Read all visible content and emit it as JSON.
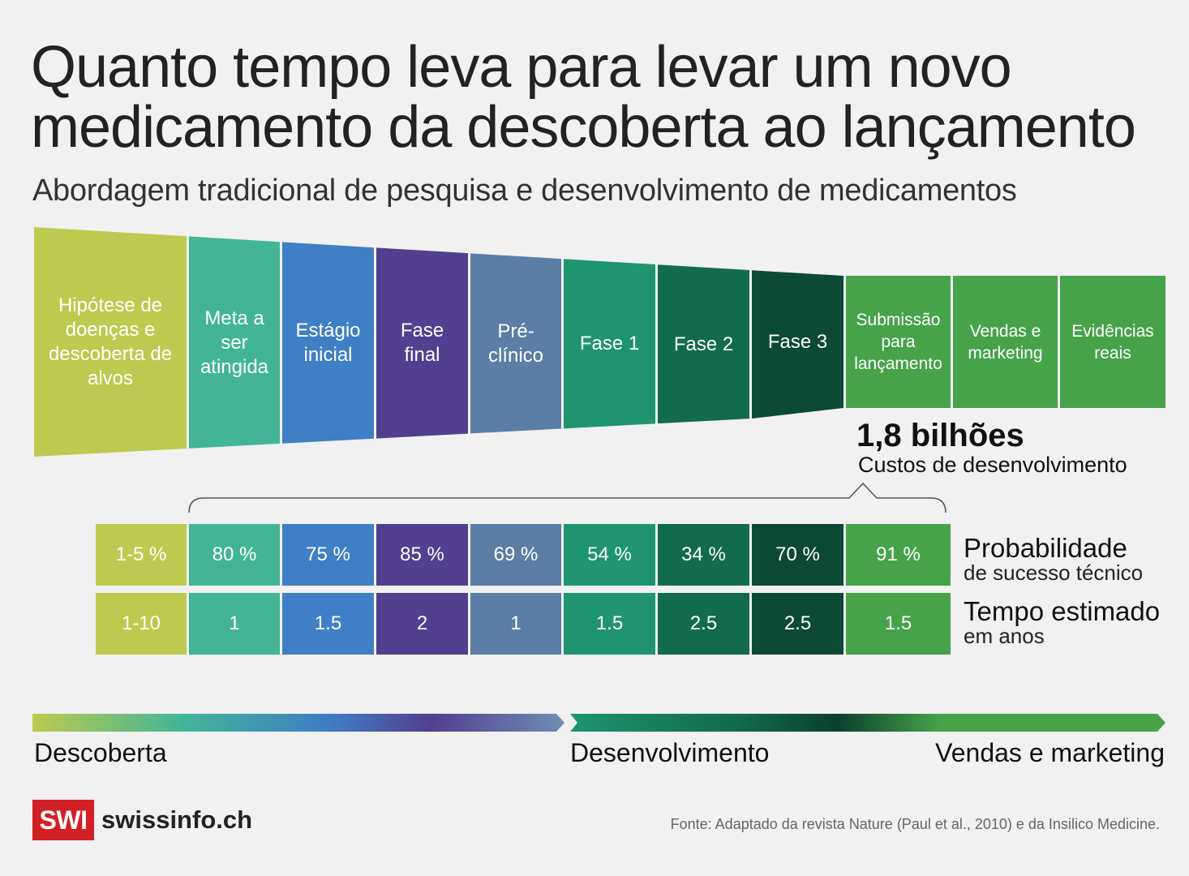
{
  "title": "Quanto tempo leva para levar um novo medicamento da descoberta ao lançamento",
  "subtitle": "Abordagem tradicional de pesquisa e desenvolvimento de medicamentos",
  "stages": [
    {
      "label": "Hipótese de doenças e descoberta de alvos",
      "color": "#bdca4f",
      "probability": "1-5 %",
      "years": "1-10"
    },
    {
      "label": "Meta a ser atingida",
      "color": "#42b596",
      "probability": "80 %",
      "years": "1"
    },
    {
      "label": "Estágio inicial",
      "color": "#3f7fc5",
      "probability": "75 %",
      "years": "1.5"
    },
    {
      "label": "Fase final",
      "color": "#523f8f",
      "probability": "85 %",
      "years": "2"
    },
    {
      "label": "Pré-clínico",
      "color": "#5a7ea6",
      "probability": "69 %",
      "years": "1"
    },
    {
      "label": "Fase 1",
      "color": "#1e9470",
      "probability": "54 %",
      "years": "1.5"
    },
    {
      "label": "Fase 2",
      "color": "#116b4c",
      "probability": "34 %",
      "years": "2.5"
    },
    {
      "label": "Fase 3",
      "color": "#0c4a36",
      "probability": "70 %",
      "years": "2.5"
    },
    {
      "label": "Submissão para lançamento",
      "color": "#46a34a",
      "probability": "91 %",
      "years": "1.5"
    },
    {
      "label": "Vendas e marketing",
      "color": "#46a34a"
    },
    {
      "label": "Evidências reais",
      "color": "#46a34a"
    }
  ],
  "cost": {
    "value": "1,8 bilhões",
    "label": "Custos de desenvolvimento"
  },
  "rows": {
    "probability": {
      "title": "Probabilidade",
      "subtitle": "de sucesso técnico"
    },
    "time": {
      "title": "Tempo estimado",
      "subtitle": "em anos"
    }
  },
  "phases": [
    "Descoberta",
    "Desenvolvimento",
    "Vendas e marketing"
  ],
  "logo": {
    "box": "SWI",
    "text": "swissinfo.ch"
  },
  "source": "Fonte: Adaptado da revista Nature (Paul et al., 2010) e da Insilico Medicine."
}
